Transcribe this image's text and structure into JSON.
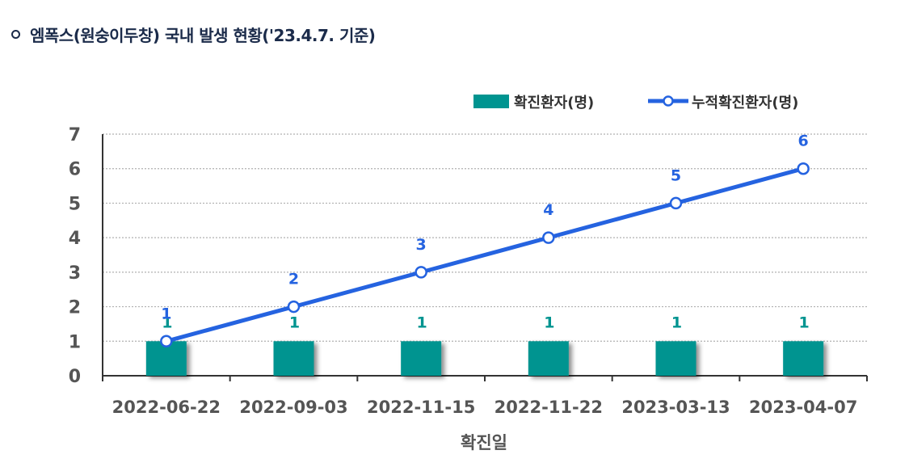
{
  "header": {
    "title": "엠폭스(원숭이두창) 국내 발생 현황('23.4.7. 기준)"
  },
  "colors": {
    "bar": "#009490",
    "line": "#2563e0",
    "axis": "#333333",
    "grid": "#b0b0b0",
    "tick": "#555555"
  },
  "chart_data": {
    "type": "bar+line",
    "title": "엠폭스(원숭이두창) 국내 발생 현황('23.4.7. 기준)",
    "xlabel": "확진일",
    "ylabel": "",
    "ylim": [
      0,
      7
    ],
    "yticks": [
      "0",
      "1",
      "2",
      "3",
      "4",
      "5",
      "6",
      "7"
    ],
    "grid": true,
    "legend_position": "top-right",
    "categories": [
      "2022-06-22",
      "2022-09-03",
      "2022-11-15",
      "2022-11-22",
      "2023-03-13",
      "2023-04-07"
    ],
    "series": [
      {
        "name": "확진환자(명)",
        "type": "bar",
        "values": [
          1,
          1,
          1,
          1,
          1,
          1
        ],
        "labels": [
          "1",
          "1",
          "1",
          "1",
          "1",
          "1"
        ]
      },
      {
        "name": "누적확진환자(명)",
        "type": "line",
        "values": [
          1,
          2,
          3,
          4,
          5,
          6
        ],
        "labels": [
          "1",
          "2",
          "3",
          "4",
          "5",
          "6"
        ]
      }
    ]
  }
}
